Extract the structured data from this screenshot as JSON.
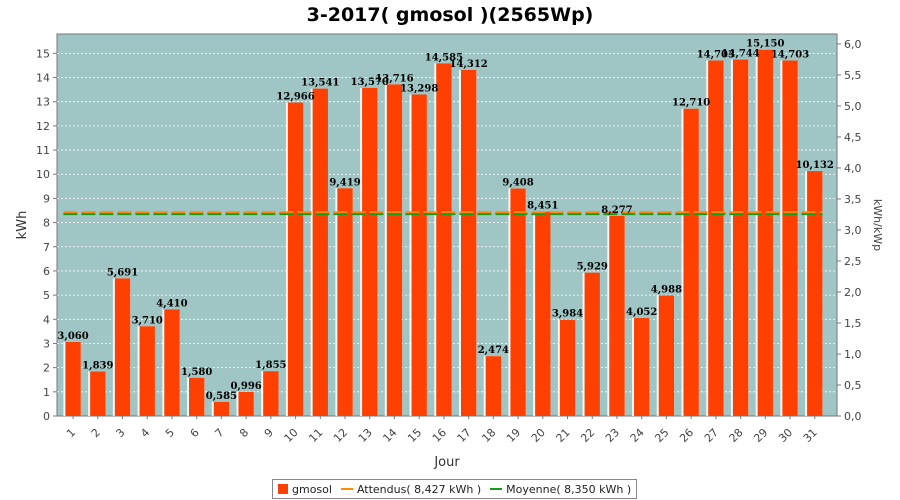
{
  "chart_data": {
    "type": "bar",
    "title": "3-2017( gmosol )(2565Wp)",
    "xlabel": "Jour",
    "ylabel": "kWh",
    "y2label": "kWh/kWp",
    "ylim": [
      0,
      15.8
    ],
    "yticks": [
      "0",
      "1",
      "2",
      "3",
      "4",
      "5",
      "6",
      "7",
      "8",
      "9",
      "10",
      "11",
      "12",
      "13",
      "14",
      "15"
    ],
    "y2lim": [
      0,
      6.16
    ],
    "y2ticks": [
      "0,0",
      "0,5",
      "1,0",
      "1,5",
      "2,0",
      "2,5",
      "3,0",
      "3,5",
      "4,0",
      "4,5",
      "5,0",
      "5,5",
      "6,0"
    ],
    "categories": [
      "1",
      "2",
      "3",
      "4",
      "5",
      "6",
      "7",
      "8",
      "9",
      "10",
      "11",
      "12",
      "13",
      "14",
      "15",
      "16",
      "17",
      "18",
      "19",
      "20",
      "21",
      "22",
      "23",
      "24",
      "25",
      "26",
      "27",
      "28",
      "29",
      "30",
      "31"
    ],
    "series": [
      {
        "name": "gmosol",
        "color": "#ff4000",
        "values": [
          3.06,
          1.839,
          5.691,
          3.71,
          4.41,
          1.58,
          0.585,
          0.996,
          1.855,
          12.966,
          13.541,
          9.419,
          13.57,
          13.716,
          13.298,
          14.585,
          14.312,
          2.474,
          9.408,
          8.451,
          3.984,
          5.929,
          8.277,
          4.052,
          4.988,
          12.71,
          14.703,
          14.744,
          15.15,
          14.703,
          10.132
        ],
        "labels": [
          "3,060",
          "1,839",
          "5,691",
          "3,710",
          "4,410",
          "1,580",
          "0,585",
          "0,996",
          "1,855",
          "12,966",
          "13,541",
          "9,419",
          "13,570",
          "13,716",
          "13,298",
          "14,585",
          "14,312",
          "2,474",
          "9,408",
          "8,451",
          "3,984",
          "5,929",
          "8,277",
          "4,052",
          "4,988",
          "12,710",
          "14,703",
          "14,744",
          "15,150",
          "14,703",
          "10,132"
        ]
      }
    ],
    "reference_lines": [
      {
        "name": "Attendus( 8,427 kWh )",
        "value": 8.427,
        "color": "#ff8c00"
      },
      {
        "name": "Moyenne( 8,350 kWh )",
        "value": 8.35,
        "color": "#1a9a1a"
      }
    ],
    "plot_background": "#9fc5c4",
    "grid": true,
    "legend_position": "bottom"
  }
}
